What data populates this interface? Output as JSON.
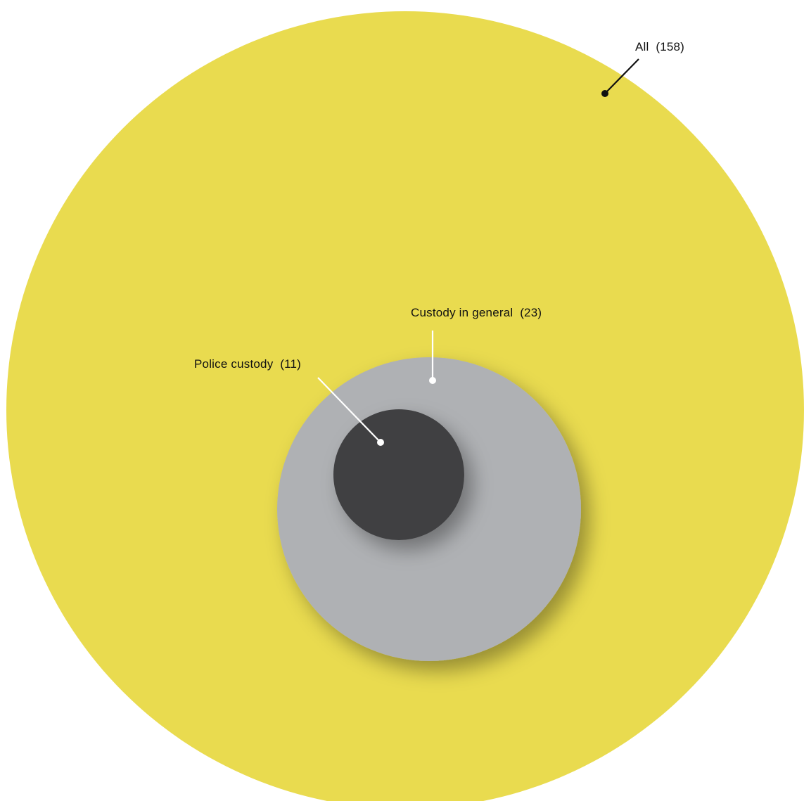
{
  "chart_data": {
    "type": "nested-bubble",
    "series": [
      {
        "label": "All",
        "value": 158,
        "label_text": "All  (158)",
        "color": "#E9DB4F"
      },
      {
        "label": "Custody in general",
        "value": 23,
        "label_text": "Custody in general  (23)",
        "color": "#AFB1B4"
      },
      {
        "label": "Police custody",
        "value": 11,
        "label_text": "Police custody  (11)",
        "color": "#404042"
      }
    ]
  },
  "colors": {
    "leader_dark": "#111111",
    "leader_light": "#ffffff"
  }
}
